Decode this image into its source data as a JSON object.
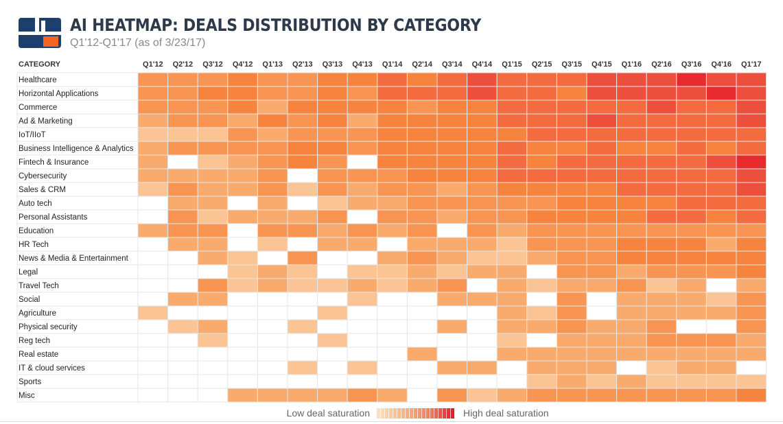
{
  "header": {
    "title": "AI HEATMAP: DEALS DISTRIBUTION BY CATEGORY",
    "subtitle": "Q1'12-Q1'17 (as of 3/23/17)"
  },
  "legend": {
    "low_label": "Low deal saturation",
    "high_label": "High deal saturation"
  },
  "colors": {
    "scale": [
      "#ffffff",
      "#fcdcbc",
      "#fbc494",
      "#f9ab6e",
      "#f89552",
      "#f7843e",
      "#f36b3e",
      "#ed4f3d",
      "#e62a2e"
    ],
    "grid_line": "#e6e6e6",
    "header_text": "#333333"
  },
  "chart_data": {
    "type": "heatmap",
    "title": "AI HEATMAP: DEALS DISTRIBUTION BY CATEGORY",
    "row_header": "CATEGORY",
    "value_scale": "0 = no deals, 1 = low deal saturation … 8 = high deal saturation",
    "columns": [
      "Q1'12",
      "Q2'12",
      "Q3'12",
      "Q4'12",
      "Q1'13",
      "Q2'13",
      "Q3'13",
      "Q4'13",
      "Q1'14",
      "Q2'14",
      "Q3'14",
      "Q4'14",
      "Q1'15",
      "Q2'15",
      "Q3'15",
      "Q4'15",
      "Q1'16",
      "Q2'16",
      "Q3'16",
      "Q4'16",
      "Q1'17"
    ],
    "rows": [
      {
        "label": "Healthcare",
        "values": [
          4,
          4,
          4,
          5,
          4,
          4,
          5,
          5,
          6,
          5,
          6,
          7,
          6,
          6,
          6,
          7,
          7,
          7,
          8,
          7,
          7
        ]
      },
      {
        "label": "Horizontal Applications",
        "values": [
          4,
          4,
          5,
          5,
          4,
          4,
          5,
          4,
          6,
          6,
          6,
          7,
          6,
          6,
          5,
          7,
          7,
          7,
          7,
          8,
          7
        ]
      },
      {
        "label": "Commerce",
        "values": [
          4,
          4,
          4,
          5,
          3,
          5,
          5,
          5,
          5,
          4,
          5,
          5,
          6,
          6,
          6,
          6,
          6,
          7,
          6,
          6,
          7
        ]
      },
      {
        "label": "Ad & Marketing",
        "values": [
          3,
          4,
          4,
          3,
          5,
          4,
          5,
          3,
          5,
          5,
          5,
          5,
          6,
          6,
          6,
          7,
          6,
          6,
          6,
          6,
          7
        ]
      },
      {
        "label": "IoT/IIoT",
        "values": [
          2,
          2,
          2,
          4,
          3,
          4,
          4,
          4,
          5,
          5,
          5,
          5,
          5,
          6,
          6,
          6,
          6,
          6,
          6,
          6,
          6
        ]
      },
      {
        "label": "Business Intelligence & Analytics",
        "values": [
          3,
          4,
          4,
          4,
          4,
          5,
          5,
          4,
          5,
          5,
          5,
          5,
          6,
          5,
          5,
          6,
          5,
          5,
          6,
          5,
          6
        ]
      },
      {
        "label": "Fintech & Insurance",
        "values": [
          3,
          0,
          2,
          3,
          4,
          5,
          4,
          0,
          5,
          5,
          5,
          5,
          6,
          5,
          6,
          6,
          6,
          6,
          6,
          7,
          8
        ]
      },
      {
        "label": "Cybersecurity",
        "values": [
          3,
          3,
          3,
          3,
          4,
          0,
          4,
          4,
          4,
          5,
          5,
          5,
          6,
          6,
          6,
          6,
          6,
          6,
          6,
          6,
          7
        ]
      },
      {
        "label": "Sales & CRM",
        "values": [
          2,
          4,
          3,
          3,
          4,
          2,
          4,
          3,
          4,
          4,
          3,
          4,
          5,
          5,
          5,
          5,
          6,
          6,
          6,
          6,
          7
        ]
      },
      {
        "label": "Auto tech",
        "values": [
          0,
          3,
          3,
          0,
          3,
          0,
          2,
          3,
          3,
          4,
          4,
          4,
          4,
          4,
          5,
          5,
          5,
          5,
          6,
          6,
          6
        ]
      },
      {
        "label": "Personal Assistants",
        "values": [
          0,
          4,
          2,
          3,
          3,
          3,
          4,
          0,
          4,
          4,
          3,
          4,
          4,
          5,
          5,
          5,
          5,
          6,
          6,
          5,
          6
        ]
      },
      {
        "label": "Education",
        "values": [
          3,
          4,
          4,
          0,
          4,
          4,
          3,
          4,
          3,
          4,
          0,
          4,
          3,
          4,
          4,
          4,
          4,
          4,
          4,
          4,
          4
        ]
      },
      {
        "label": "HR Tech",
        "values": [
          0,
          3,
          3,
          0,
          2,
          0,
          3,
          3,
          0,
          3,
          3,
          3,
          2,
          4,
          4,
          4,
          5,
          5,
          5,
          3,
          5
        ]
      },
      {
        "label": "News & Media & Entertainment",
        "values": [
          0,
          0,
          3,
          2,
          0,
          4,
          0,
          0,
          3,
          4,
          3,
          2,
          2,
          3,
          4,
          4,
          5,
          5,
          5,
          5,
          5
        ]
      },
      {
        "label": "Legal",
        "values": [
          0,
          0,
          0,
          2,
          3,
          2,
          0,
          2,
          2,
          3,
          2,
          3,
          3,
          0,
          4,
          4,
          3,
          4,
          4,
          4,
          5
        ]
      },
      {
        "label": "Travel Tech",
        "values": [
          0,
          0,
          4,
          2,
          3,
          2,
          2,
          3,
          2,
          3,
          4,
          0,
          3,
          2,
          3,
          3,
          4,
          2,
          3,
          0,
          3
        ]
      },
      {
        "label": "Social",
        "values": [
          0,
          3,
          3,
          0,
          0,
          0,
          0,
          2,
          0,
          0,
          3,
          3,
          3,
          0,
          4,
          0,
          3,
          3,
          3,
          2,
          4
        ]
      },
      {
        "label": "Agriculture",
        "values": [
          2,
          0,
          0,
          0,
          0,
          0,
          2,
          0,
          0,
          0,
          0,
          0,
          3,
          2,
          4,
          0,
          3,
          3,
          3,
          3,
          4
        ]
      },
      {
        "label": "Physical security",
        "values": [
          0,
          2,
          3,
          0,
          0,
          2,
          0,
          0,
          0,
          0,
          3,
          0,
          3,
          3,
          4,
          3,
          3,
          4,
          0,
          0,
          4
        ]
      },
      {
        "label": "Reg tech",
        "values": [
          0,
          0,
          2,
          0,
          0,
          0,
          2,
          0,
          0,
          0,
          0,
          0,
          2,
          0,
          3,
          3,
          3,
          4,
          4,
          4,
          3
        ]
      },
      {
        "label": "Real estate",
        "values": [
          0,
          0,
          0,
          0,
          0,
          0,
          0,
          0,
          0,
          3,
          0,
          0,
          3,
          3,
          3,
          3,
          3,
          3,
          3,
          3,
          3
        ]
      },
      {
        "label": "IT & cloud services",
        "values": [
          0,
          0,
          0,
          0,
          0,
          2,
          0,
          2,
          0,
          0,
          3,
          3,
          0,
          3,
          3,
          3,
          0,
          2,
          3,
          3,
          0
        ]
      },
      {
        "label": "Sports",
        "values": [
          0,
          0,
          0,
          0,
          0,
          0,
          0,
          0,
          0,
          0,
          0,
          0,
          0,
          2,
          3,
          2,
          3,
          2,
          2,
          2,
          2
        ]
      },
      {
        "label": "Misc",
        "values": [
          0,
          0,
          0,
          3,
          3,
          3,
          3,
          4,
          3,
          0,
          4,
          2,
          3,
          4,
          4,
          4,
          4,
          4,
          4,
          4,
          5
        ]
      }
    ]
  }
}
